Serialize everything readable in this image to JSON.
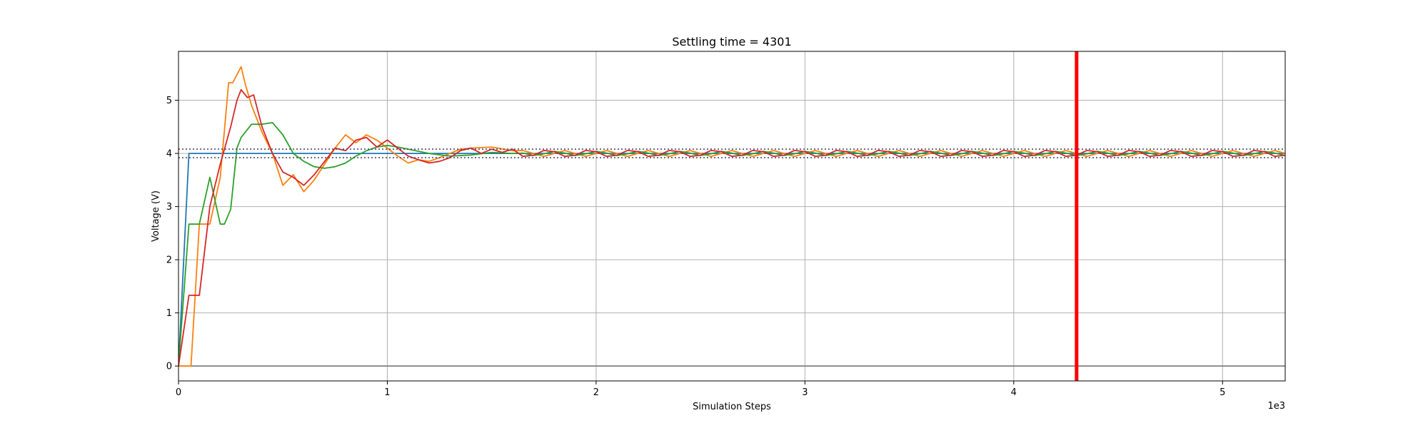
{
  "chart_data": {
    "type": "line",
    "title": "Settling time = 4301",
    "xlabel": "Simulation Steps",
    "ylabel": "Voltage (V)",
    "x_offset_label": "1e3",
    "xlim": [
      0,
      5.3
    ],
    "ylim": [
      -0.28,
      5.92
    ],
    "xticks": [
      0,
      1,
      2,
      3,
      4,
      5
    ],
    "xtick_labels": [
      "0",
      "1",
      "2",
      "3",
      "4",
      "5"
    ],
    "yticks": [
      0,
      1,
      2,
      3,
      4,
      5
    ],
    "ytick_labels": [
      "0",
      "1",
      "2",
      "3",
      "4",
      "5"
    ],
    "grid": true,
    "reference_lines": {
      "zero_line": 0,
      "upper_band": 4.08,
      "lower_band": 3.92,
      "settling_time_marker": 4.301
    },
    "colors": {
      "series1": "#1f77b4",
      "series2": "#ff7f0e",
      "series3": "#2ca02c",
      "series4": "#d62728",
      "marker": "#ff0000",
      "zero_line": "#808080",
      "band": "#4d4d6e",
      "grid": "#b0b0b0"
    },
    "series": [
      {
        "x": [
          0,
          0.05,
          5.3
        ],
        "y": [
          0,
          4.0,
          4.0
        ]
      },
      {
        "x": [
          0,
          0.06,
          0.1,
          0.15,
          0.2,
          0.24,
          0.26,
          0.3,
          0.32,
          0.35,
          0.4,
          0.45,
          0.5,
          0.55,
          0.6,
          0.65,
          0.7,
          0.75,
          0.8,
          0.85,
          0.9,
          0.95,
          1.0,
          1.05,
          1.1,
          1.15,
          1.2,
          1.25,
          1.3,
          1.35,
          1.4,
          1.5,
          1.6
        ],
        "y": [
          0,
          0,
          2.67,
          2.67,
          3.55,
          5.33,
          5.33,
          5.63,
          5.3,
          4.9,
          4.4,
          4.0,
          3.4,
          3.6,
          3.28,
          3.5,
          3.8,
          4.1,
          4.35,
          4.2,
          4.35,
          4.25,
          4.1,
          3.95,
          3.82,
          3.88,
          3.85,
          3.92,
          4.0,
          4.08,
          4.1,
          4.12,
          4.05
        ]
      },
      {
        "x": [
          0,
          0.05,
          0.1,
          0.15,
          0.2,
          0.22,
          0.25,
          0.28,
          0.3,
          0.35,
          0.4,
          0.45,
          0.5,
          0.55,
          0.6,
          0.65,
          0.7,
          0.75,
          0.8,
          0.85,
          0.9,
          0.95,
          1.0,
          1.05,
          1.1,
          1.2,
          1.3,
          1.4,
          1.5,
          1.6
        ],
        "y": [
          0,
          2.67,
          2.67,
          3.55,
          2.67,
          2.67,
          2.95,
          4.1,
          4.3,
          4.55,
          4.55,
          4.58,
          4.35,
          4.0,
          3.85,
          3.75,
          3.72,
          3.75,
          3.82,
          3.95,
          4.05,
          4.12,
          4.15,
          4.12,
          4.08,
          4.0,
          3.95,
          3.97,
          4.02,
          4.0
        ]
      },
      {
        "x": [
          0,
          0.05,
          0.1,
          0.15,
          0.2,
          0.25,
          0.28,
          0.3,
          0.33,
          0.36,
          0.4,
          0.45,
          0.5,
          0.55,
          0.6,
          0.65,
          0.7,
          0.75,
          0.8,
          0.85,
          0.9,
          0.95,
          1.0,
          1.05,
          1.1,
          1.15,
          1.2,
          1.25,
          1.3,
          1.35,
          1.4,
          1.45,
          1.5,
          1.55,
          1.6
        ],
        "y": [
          0,
          1.33,
          1.33,
          3.0,
          3.8,
          4.5,
          5.0,
          5.2,
          5.05,
          5.1,
          4.5,
          4.0,
          3.65,
          3.55,
          3.4,
          3.6,
          3.85,
          4.1,
          4.05,
          4.25,
          4.3,
          4.12,
          4.25,
          4.1,
          3.95,
          3.88,
          3.82,
          3.85,
          3.92,
          4.05,
          4.1,
          4.0,
          4.08,
          4.02,
          4.08
        ]
      }
    ]
  }
}
